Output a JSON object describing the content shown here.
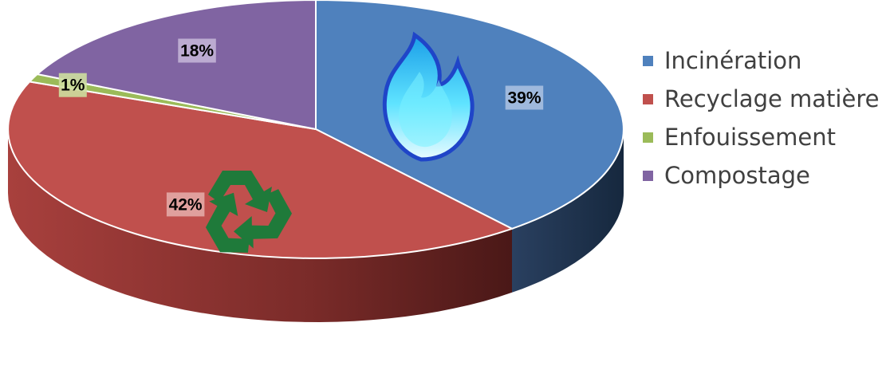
{
  "chart_data": {
    "type": "pie",
    "style": "3d",
    "categories": [
      "Incinération",
      "Recyclage matière",
      "Enfouissement",
      "Compostage"
    ],
    "values": [
      39,
      42,
      1,
      18
    ],
    "value_labels": [
      "39%",
      "42%",
      "1%",
      "18%"
    ],
    "colors": [
      "#4F81BD",
      "#C0504D",
      "#9BBB59",
      "#8064A2"
    ],
    "legend_position": "right",
    "icons": [
      "flame-icon",
      "recycle-icon"
    ]
  }
}
